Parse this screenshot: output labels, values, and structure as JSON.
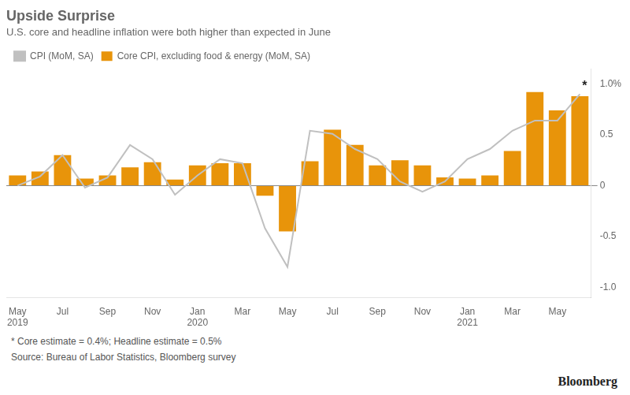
{
  "chart_data": {
    "type": "bar",
    "title": "Upside Surprise",
    "subtitle": "U.S. core and headline inflation were both higher than expected in June",
    "footnote": "* Core estimate = 0.4%; Headline estimate = 0.5%",
    "source": "Source: Bureau of Labor Statistics, Bloomberg survey",
    "credit": "Bloomberg",
    "categories": [
      "May\n2019",
      null,
      "Jul",
      null,
      "Sep",
      null,
      "Nov",
      null,
      "Jan\n2020",
      null,
      "Mar",
      null,
      "May",
      null,
      "Jul",
      null,
      "Sep",
      null,
      "Nov",
      null,
      "Jan\n2021",
      null,
      "Mar",
      null,
      "May",
      null
    ],
    "series": [
      {
        "name": "Core CPI, excluding food & energy (MoM, SA)",
        "type": "bar",
        "color": "#E8940A",
        "values": [
          0.1,
          0.14,
          0.3,
          0.07,
          0.1,
          0.18,
          0.23,
          0.06,
          0.2,
          0.22,
          0.22,
          -0.1,
          -0.45,
          0.24,
          0.55,
          0.4,
          0.2,
          0.25,
          0.2,
          0.08,
          0.07,
          0.1,
          0.34,
          0.92,
          0.74,
          0.88
        ]
      },
      {
        "name": "CPI (MoM, SA)",
        "type": "line",
        "color": "#C0C0C0",
        "marker": "none",
        "values": [
          0.0,
          0.09,
          0.3,
          -0.02,
          0.08,
          0.4,
          0.26,
          -0.09,
          0.1,
          0.26,
          0.22,
          -0.42,
          -0.8,
          0.54,
          0.51,
          0.36,
          0.26,
          0.04,
          -0.06,
          0.04,
          0.26,
          0.36,
          0.54,
          0.64,
          0.64,
          0.9
        ]
      }
    ],
    "annotations": [
      {
        "text": "*",
        "series": "CPI (MoM, SA)",
        "index": 25
      }
    ],
    "ylim": [
      -1.1,
      1.15
    ],
    "yticks": [
      {
        "value": -1.0,
        "label": "-1.0"
      },
      -0.5,
      0,
      0.5,
      {
        "value": 1.0,
        "label": "1.0%"
      }
    ],
    "grid": false,
    "legend": "top"
  }
}
